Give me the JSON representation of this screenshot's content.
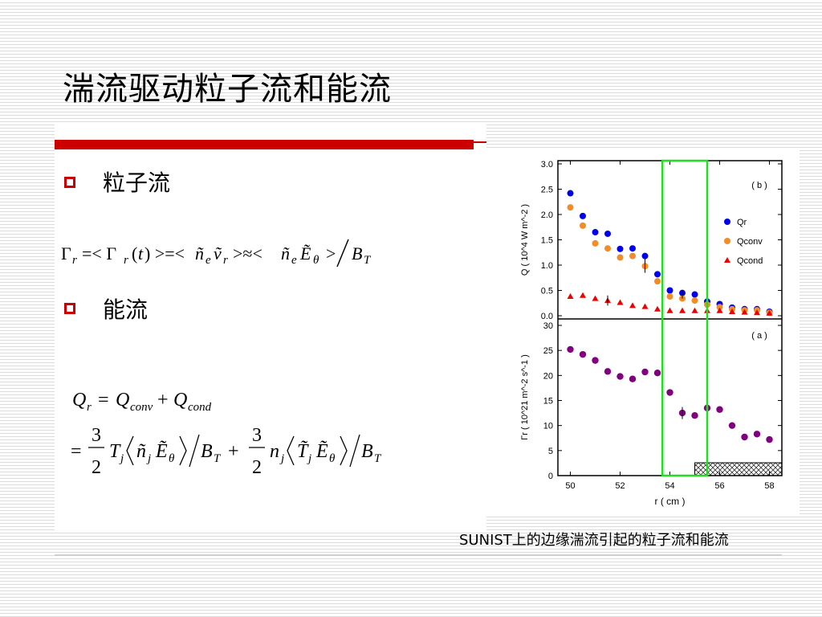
{
  "slide": {
    "title": "湍流驱动粒子流和能流",
    "bullets": [
      "粒子流",
      "能流"
    ],
    "caption": "SUNIST上的边缘湍流引起的粒子流和能流"
  },
  "colors": {
    "accent": "#cc0000",
    "q_r": "#0000ee",
    "q_conv": "#f28c28",
    "q_cond": "#ee0000",
    "gamma": "#800080",
    "highlight": "#22dd22"
  },
  "formulas": {
    "particle_flux": "Γr =< Γr(t) >=< ñe ṽr >≈< ñe Ẽθ >/BT",
    "energy_flux_line1": "Qr = Qconv + Qcond",
    "energy_flux_line2": "= 3/2 Tj ⟨ ñj Ẽθ ⟩/BT + 3/2 nj ⟨ T̃j Ẽθ ⟩/BT"
  },
  "chart_data": [
    {
      "type": "scatter",
      "panel_label": "( b )",
      "ylabel": "Q ( 10^4 W m^-2 )",
      "ylim": [
        0,
        3.0
      ],
      "yticks": [
        "0.0",
        "0.5",
        "1.0",
        "1.5",
        "2.0",
        "2.5",
        "3.0"
      ],
      "legend_position": "right",
      "series": [
        {
          "name": "Qr",
          "marker": "circle",
          "color": "#0000ee",
          "x": [
            50,
            50.5,
            51,
            51.5,
            52,
            52.5,
            53,
            53.5,
            54,
            54.5,
            55,
            55.5,
            56,
            56.5,
            57,
            57.5,
            58
          ],
          "y": [
            2.42,
            1.97,
            1.65,
            1.62,
            1.32,
            1.33,
            1.18,
            0.82,
            0.5,
            0.45,
            0.42,
            0.28,
            0.23,
            0.16,
            0.13,
            0.13,
            0.08
          ]
        },
        {
          "name": "Qconv",
          "marker": "circle",
          "color": "#f28c28",
          "x": [
            50,
            50.5,
            51,
            51.5,
            52,
            52.5,
            53,
            53.5,
            54,
            54.5,
            55,
            55.5,
            56,
            56.5,
            57,
            57.5,
            58
          ],
          "y": [
            2.14,
            1.78,
            1.43,
            1.33,
            1.15,
            1.18,
            0.98,
            0.68,
            0.38,
            0.34,
            0.3,
            0.22,
            0.17,
            0.13,
            0.11,
            0.11,
            0.06
          ]
        },
        {
          "name": "Qcond",
          "marker": "triangle",
          "color": "#ee0000",
          "x": [
            50,
            50.5,
            51,
            51.5,
            52,
            52.5,
            53,
            53.5,
            54,
            54.5,
            55,
            55.5,
            56,
            56.5,
            57,
            57.5,
            58
          ],
          "y": [
            0.38,
            0.4,
            0.34,
            0.3,
            0.26,
            0.2,
            0.18,
            0.13,
            0.1,
            0.1,
            0.1,
            0.1,
            0.1,
            0.08,
            0.07,
            0.06,
            0.05
          ]
        }
      ]
    },
    {
      "type": "scatter",
      "panel_label": "( a )",
      "ylabel": "Γr ( 10^21 m^-2 s^-1 )",
      "xlabel": "r ( cm )",
      "ylim": [
        0,
        30
      ],
      "xlim": [
        49.5,
        58.5
      ],
      "yticks": [
        "0",
        "5",
        "10",
        "15",
        "20",
        "25",
        "30"
      ],
      "xticks": [
        "50",
        "52",
        "54",
        "56",
        "58"
      ],
      "series": [
        {
          "marker": "circle",
          "color": "#800080",
          "x": [
            50,
            50.5,
            51,
            51.5,
            52,
            52.5,
            53,
            53.5,
            54,
            54.5,
            55,
            55.5,
            56,
            56.5,
            57,
            57.5,
            58
          ],
          "y": [
            25.2,
            24.2,
            23.0,
            20.8,
            19.8,
            19.3,
            20.7,
            20.5,
            16.6,
            12.5,
            12.0,
            13.5,
            13.2,
            10.0,
            7.7,
            8.3,
            7.2
          ]
        }
      ],
      "highlight_region_x": [
        53.7,
        55.5
      ],
      "hatched_region_x": [
        55.0,
        58.5
      ]
    }
  ]
}
